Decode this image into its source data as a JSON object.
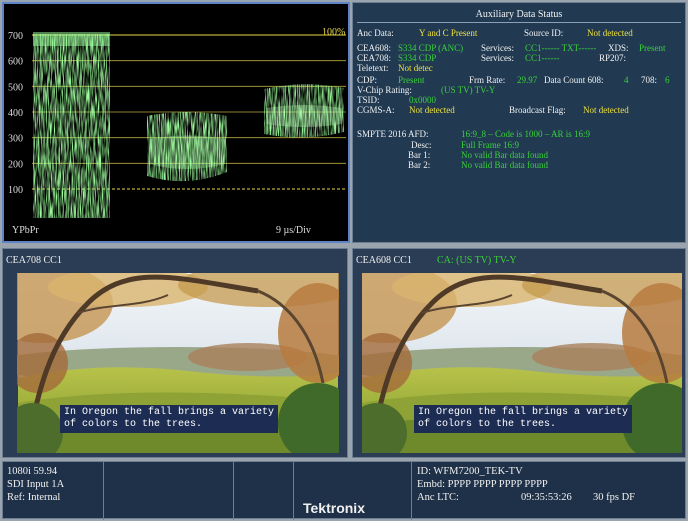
{
  "waveform": {
    "yticks": [
      700,
      600,
      500,
      400,
      300,
      200,
      100
    ],
    "full_scale_label": "100%",
    "input": "YPbPr",
    "sweep": "9 µs/Div"
  },
  "aux_status": {
    "title": "Auxiliary Data Status",
    "rows": [
      [
        "Anc Data:",
        "Y and C Present",
        "Source ID:",
        "Not detected"
      ],
      [
        "CEA608:",
        "S334 CDP (ANC)",
        "Services:",
        "CC1------ TXT------",
        "XDS:",
        "Present"
      ],
      [
        "CEA708:",
        "S334 CDP",
        "Services:",
        "CC1------",
        "RP207:"
      ],
      [
        "Teletext:",
        "Not detec"
      ],
      [
        "CDP:",
        "Present",
        "Frm Rate:",
        "29.97",
        "Data Count 608:",
        "4",
        "708:",
        "6"
      ],
      [
        "V-Chip Rating:",
        "(US TV) TV-Y"
      ],
      [
        "TSID:",
        "0x0000"
      ],
      [
        "CGMS-A:",
        "Not detected",
        "Broadcast Flag:",
        "Not detected"
      ],
      [
        "SMPTE 2016 AFD:",
        "16:9_8 – Code is 1000 – AR is 16:9"
      ],
      [
        "Desc:",
        "Full Frame 16:9"
      ],
      [
        "Bar 1:",
        "No valid Bar data found"
      ],
      [
        "Bar 2:",
        "No valid Bar data found"
      ]
    ]
  },
  "left_panel": {
    "label": "CEA708 CC1",
    "caption": [
      "In Oregon the fall brings a variety",
      "of colors to the trees."
    ]
  },
  "right_panel": {
    "label": "CEA608 CC1",
    "rating": "CA: (US TV) TV-Y",
    "caption": [
      "In Oregon the fall brings a variety",
      "of colors to the trees."
    ]
  },
  "footer": {
    "format": "1080i 59.94",
    "input": "SDI Input 1A",
    "ref": "Ref: Internal",
    "brand": "Tektronix",
    "id": "ID: WFM7200_TEK-TV",
    "embedded": "Embd: PPPP PPPP PPPP PPPP",
    "ltc_label": "Anc LTC:",
    "ltc": "09:35:53:26",
    "fps": "30 fps DF"
  }
}
